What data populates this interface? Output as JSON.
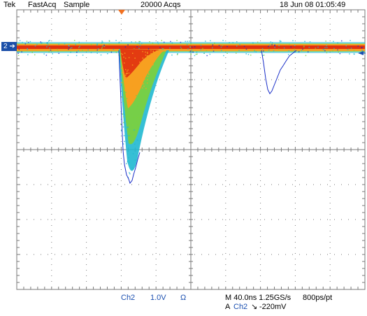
{
  "header": {
    "brand": "Tek",
    "mode": "FastAcq",
    "acq_type": "Sample",
    "acq_count": "20000 Acqs",
    "datetime": "18 Jun 08 01:05:49"
  },
  "channel_marker": {
    "label": "2",
    "color": "#1b4fa8"
  },
  "footer": {
    "channel": "Ch2",
    "volts_per_div": "1.0V",
    "impedance": "Ω",
    "timebase": "M 40.0ns 1.25GS/s",
    "resolution": "800ps/pt",
    "trigger_prefix": "A",
    "trigger_channel": "Ch2",
    "trigger_slope": "↘",
    "trigger_level": "-220mV"
  },
  "colors": {
    "grid": "#7a7a7a",
    "trace_hot": "#e03010",
    "trace_warm": "#f7a020",
    "trace_mid": "#7ad040",
    "trace_cool": "#20b8d0",
    "envelope": "#1a2fc8",
    "trigger_marker": "#f07020",
    "label_blue": "#1a4fb0"
  }
}
